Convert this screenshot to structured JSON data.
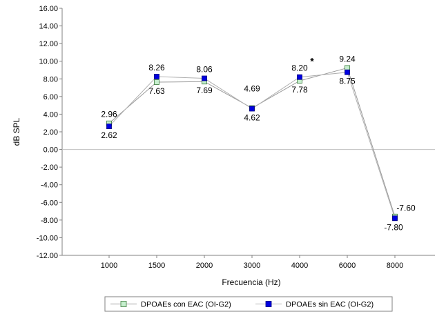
{
  "chart_data": {
    "type": "line",
    "xlabel": "Frecuencia (Hz)",
    "ylabel": "dB SPL",
    "ylim": [
      -12,
      16
    ],
    "yticks": [
      "16.00",
      "14.00",
      "12.00",
      "10.00",
      "8.00",
      "6.00",
      "4.00",
      "2.00",
      "0.00",
      "-2.00",
      "-4.00",
      "-6.00",
      "-8.00",
      "-10.00",
      "-12.00"
    ],
    "categories": [
      "1000",
      "1500",
      "2000",
      "3000",
      "4000",
      "6000",
      "8000"
    ],
    "series": [
      {
        "name": "DPOAEs con EAC (OI-G2)",
        "values": [
          2.96,
          7.63,
          7.69,
          4.69,
          7.78,
          9.24,
          -7.6
        ],
        "labels": [
          "2.96",
          "7.63",
          "7.69",
          "4.69",
          "7.78",
          "9.24",
          "-7.60"
        ],
        "color": "#c6efce",
        "stroke": "#3a7a3a"
      },
      {
        "name": "DPOAEs sin EAC (OI-G2)",
        "values": [
          2.62,
          8.26,
          8.06,
          4.62,
          8.2,
          8.75,
          -7.8
        ],
        "labels": [
          "2.62",
          "8.26",
          "8.06",
          "4.62",
          "8.20",
          "8.75",
          "-7.80"
        ],
        "color": "#0000e0",
        "stroke": "#00007a"
      }
    ],
    "annotation": "*",
    "grid": false,
    "legend": "bottom"
  }
}
